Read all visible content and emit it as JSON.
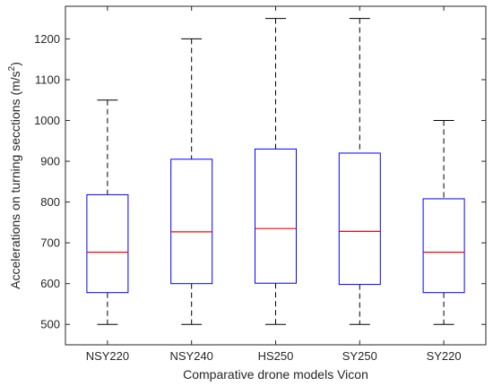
{
  "chart_data": {
    "type": "box",
    "title": "",
    "xlabel": "Comparative drone models Vicon",
    "ylabel_main": "Accelerations on turning secctions (m/s",
    "ylabel_sup": "2",
    "ylabel_close": ")",
    "ylim": [
      450,
      1280
    ],
    "yticks": [
      500,
      600,
      700,
      800,
      900,
      1000,
      1100,
      1200
    ],
    "ytick_labels": [
      "500",
      "600",
      "700",
      "800",
      "900",
      "1000",
      "1100",
      "1200"
    ],
    "categories": [
      "NSY220",
      "NSY240",
      "HS250",
      "SY250",
      "SY220"
    ],
    "boxes": [
      {
        "min": 500,
        "q1": 578,
        "median": 677,
        "q3": 818,
        "max": 1050
      },
      {
        "min": 500,
        "q1": 600,
        "median": 727,
        "q3": 905,
        "max": 1200
      },
      {
        "min": 500,
        "q1": 601,
        "median": 735,
        "q3": 930,
        "max": 1250
      },
      {
        "min": 500,
        "q1": 598,
        "median": 728,
        "q3": 920,
        "max": 1250
      },
      {
        "min": 500,
        "q1": 578,
        "median": 677,
        "q3": 808,
        "max": 1000
      }
    ],
    "grid": false,
    "colors": {
      "box": "#0000ff",
      "median": "#ff0000",
      "whisker": "#000000",
      "axis": "#262626"
    }
  }
}
